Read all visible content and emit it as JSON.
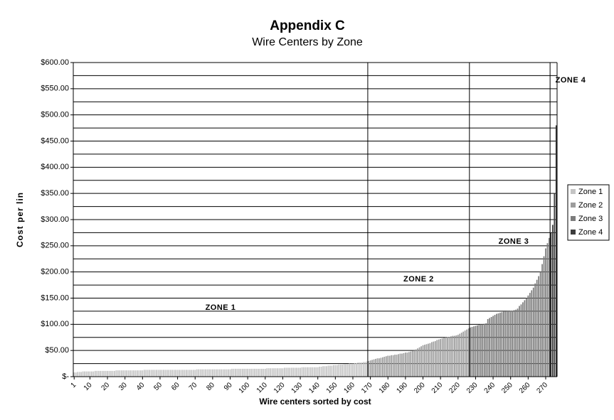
{
  "chart_data": {
    "type": "bar",
    "title": "Appendix C",
    "subtitle": "Wire Centers by Zone",
    "y_label": "Cost per lin",
    "x_label": "Wire centers sorted by cost",
    "annotations": [
      "ZONE 1",
      "ZONE 2",
      "ZONE 3",
      "ZONE 4"
    ],
    "xlim": [
      0.5,
      276.5
    ],
    "xticks": [
      1,
      10,
      20,
      30,
      40,
      50,
      60,
      70,
      80,
      90,
      100,
      110,
      120,
      130,
      140,
      150,
      160,
      170,
      180,
      190,
      200,
      210,
      220,
      230,
      240,
      250,
      260,
      270
    ],
    "ylim": [
      0,
      600
    ],
    "yticks": [
      {
        "value": 0,
        "label": "$-"
      },
      {
        "value": 50,
        "label": "$50.00"
      },
      {
        "value": 100,
        "label": "$100.00"
      },
      {
        "value": 150,
        "label": "$150.00"
      },
      {
        "value": 200,
        "label": "$200.00"
      },
      {
        "value": 250,
        "label": "$250.00"
      },
      {
        "value": 300,
        "label": "$300.00"
      },
      {
        "value": 350,
        "label": "$350.00"
      },
      {
        "value": 400,
        "label": "$400.00"
      },
      {
        "value": 450,
        "label": "$450.00"
      },
      {
        "value": 500,
        "label": "$500.00"
      },
      {
        "value": 550,
        "label": "$550.00"
      },
      {
        "value": 600,
        "label": "$600.00"
      }
    ],
    "y_minor_ticks": [
      25,
      75,
      125,
      175,
      225,
      275,
      325,
      375,
      425,
      475,
      525,
      575
    ],
    "grid": true,
    "legend": "right",
    "series": [
      {
        "name": "Zone 1",
        "color": "#c4c4c4",
        "x": [
          1,
          2,
          3,
          4,
          5,
          6,
          7,
          8,
          9,
          10,
          11,
          12,
          13,
          14,
          15,
          16,
          17,
          18,
          19,
          20,
          21,
          22,
          23,
          24,
          25,
          26,
          27,
          28,
          29,
          30,
          31,
          32,
          33,
          34,
          35,
          36,
          37,
          38,
          39,
          40,
          41,
          42,
          43,
          44,
          45,
          46,
          47,
          48,
          49,
          50,
          51,
          52,
          53,
          54,
          55,
          56,
          57,
          58,
          59,
          60,
          61,
          62,
          63,
          64,
          65,
          66,
          67,
          68,
          69,
          70,
          71,
          72,
          73,
          74,
          75,
          76,
          77,
          78,
          79,
          80,
          81,
          82,
          83,
          84,
          85,
          86,
          87,
          88,
          89,
          90,
          91,
          92,
          93,
          94,
          95,
          96,
          97,
          98,
          99,
          100,
          101,
          102,
          103,
          104,
          105,
          106,
          107,
          108,
          109,
          110,
          111,
          112,
          113,
          114,
          115,
          116,
          117,
          118,
          119,
          120,
          121,
          122,
          123,
          124,
          125,
          126,
          127,
          128,
          129,
          130,
          131,
          132,
          133,
          134,
          135,
          136,
          137,
          138,
          139,
          140,
          141,
          142,
          143,
          144,
          145,
          146,
          147,
          148,
          149,
          150,
          151,
          152,
          153,
          154,
          155,
          156,
          157,
          158,
          159,
          160,
          161,
          162,
          163,
          164,
          165,
          166,
          167,
          168
        ],
        "values": [
          8,
          8,
          9,
          9,
          9,
          10,
          10,
          10,
          10,
          10,
          10,
          10,
          11,
          11,
          11,
          11,
          11,
          11,
          11,
          11,
          11,
          11,
          11,
          11,
          12,
          12,
          12,
          12,
          12,
          12,
          12,
          12,
          12,
          12,
          12,
          12,
          12,
          12,
          12,
          12,
          13,
          13,
          13,
          13,
          13,
          13,
          13,
          13,
          13,
          13,
          13,
          13,
          13,
          13,
          13,
          13,
          13,
          13,
          13,
          13,
          13,
          13,
          13,
          13,
          13,
          13,
          13,
          13,
          13,
          13,
          14,
          14,
          14,
          14,
          14,
          14,
          14,
          14,
          14,
          14,
          14,
          14,
          14,
          14,
          14,
          14,
          14,
          14,
          14,
          14,
          15,
          15,
          15,
          15,
          15,
          15,
          15,
          15,
          15,
          15,
          15,
          15,
          15,
          15,
          15,
          15,
          15,
          15,
          15,
          15,
          16,
          16,
          16,
          16,
          16,
          16,
          16,
          16,
          16,
          16,
          17,
          17,
          17,
          17,
          17,
          17,
          17,
          17,
          17,
          17,
          18,
          18,
          18,
          18,
          18,
          18,
          18,
          18,
          18,
          18,
          19,
          19,
          20,
          20,
          20,
          21,
          21,
          21,
          22,
          22,
          22,
          23,
          23,
          23,
          24,
          24,
          24,
          25,
          25,
          25,
          26,
          26,
          27,
          27,
          27,
          28,
          28,
          29
        ]
      },
      {
        "name": "Zone 2",
        "color": "#9c9c9c",
        "x": [
          169,
          170,
          171,
          172,
          173,
          174,
          175,
          176,
          177,
          178,
          179,
          180,
          181,
          182,
          183,
          184,
          185,
          186,
          187,
          188,
          189,
          190,
          191,
          192,
          193,
          194,
          195,
          196,
          197,
          198,
          199,
          200,
          201,
          202,
          203,
          204,
          205,
          206,
          207,
          208,
          209,
          210,
          211,
          212,
          213,
          214,
          215,
          216,
          217,
          218,
          219,
          220,
          221,
          222,
          223,
          224,
          225,
          226
        ],
        "values": [
          30,
          31,
          32,
          33,
          34,
          35,
          35,
          36,
          37,
          38,
          39,
          40,
          40,
          41,
          41,
          42,
          42,
          43,
          44,
          44,
          45,
          46,
          46,
          47,
          48,
          49,
          50,
          52,
          54,
          56,
          58,
          60,
          61,
          62,
          63,
          64,
          66,
          67,
          68,
          70,
          71,
          72,
          73,
          74,
          75,
          76,
          76,
          77,
          78,
          78,
          79,
          80,
          82,
          84,
          86,
          88,
          90,
          92
        ]
      },
      {
        "name": "Zone 3",
        "color": "#7c7c7c",
        "x": [
          227,
          228,
          229,
          230,
          231,
          232,
          233,
          234,
          235,
          236,
          237,
          238,
          239,
          240,
          241,
          242,
          243,
          244,
          245,
          246,
          247,
          248,
          249,
          250,
          251,
          252,
          253,
          254,
          255,
          256,
          257,
          258,
          259,
          260,
          261,
          262,
          263,
          264,
          265,
          266,
          267,
          268,
          269,
          270,
          271,
          272
        ],
        "values": [
          94,
          95,
          96,
          97,
          98,
          99,
          100,
          100,
          101,
          102,
          110,
          112,
          114,
          116,
          118,
          120,
          121,
          122,
          123,
          124,
          124,
          125,
          125,
          126,
          126,
          127,
          128,
          130,
          135,
          138,
          142,
          146,
          150,
          155,
          160,
          165,
          170,
          178,
          185,
          192,
          200,
          215,
          230,
          245,
          255,
          265
        ]
      },
      {
        "name": "Zone 4",
        "color": "#3c3c3c",
        "x": [
          273,
          274,
          275,
          276
        ],
        "values": [
          275,
          290,
          350,
          480
        ]
      }
    ]
  }
}
